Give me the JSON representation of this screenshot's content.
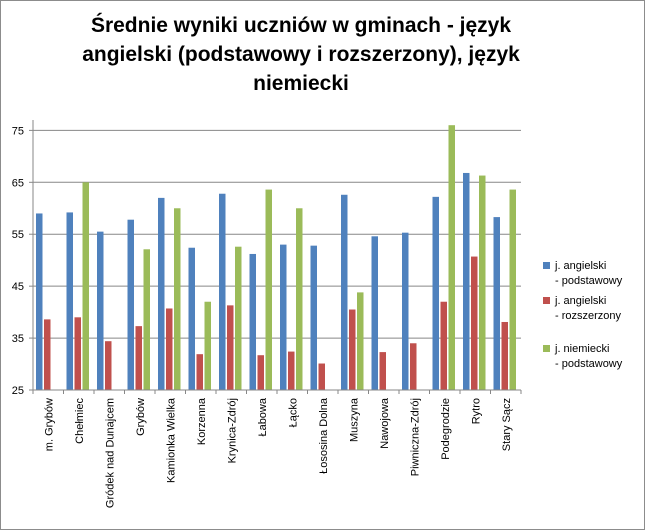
{
  "chart_data": {
    "type": "bar",
    "title": "Średnie wyniki uczniów w gminach - język angielski (podstawowy i rozszerzony), język niemiecki",
    "xlabel": "",
    "ylabel": "",
    "ylim": [
      25,
      77
    ],
    "yticks": [
      25,
      35,
      45,
      55,
      65,
      75
    ],
    "grid": true,
    "legend_position": "right",
    "categories": [
      "m. Grybów",
      "Chełmiec",
      "Gródek nad Dunajcem",
      "Grybów",
      "Kamionka Wielka",
      "Korzenna",
      "Krynica-Zdrój",
      "Łabowa",
      "Łącko",
      "Łososina Dolna",
      "Muszyna",
      "Nawojowa",
      "Piwniczna-Zdrój",
      "Podegrodzie",
      "Rytro",
      "Stary Sącz"
    ],
    "series": [
      {
        "name": "j. angielski - podstawowy",
        "legend_lines": [
          "j. angielski",
          "- podstawowy"
        ],
        "color": "#4f81bd",
        "values": [
          59,
          59.2,
          55.5,
          57.8,
          62,
          52.4,
          62.8,
          51.2,
          53,
          52.8,
          62.6,
          54.6,
          55.3,
          62.2,
          66.8,
          58.3
        ]
      },
      {
        "name": "j. angielski - rozszerzony",
        "legend_lines": [
          "j. angielski",
          "- rozszerzony"
        ],
        "color": "#c0504d",
        "values": [
          38.6,
          39,
          34.4,
          37.3,
          40.7,
          31.9,
          41.3,
          31.7,
          32.4,
          30.1,
          40.5,
          32.3,
          34,
          42,
          50.7,
          38.1
        ]
      },
      {
        "name": "j. niemiecki - podstawowy",
        "legend_lines": [
          "j. niemiecki",
          "- podstawowy"
        ],
        "color": "#9bbb59",
        "values": [
          null,
          65,
          null,
          52.1,
          60,
          42,
          52.6,
          63.6,
          60,
          null,
          43.8,
          null,
          null,
          76,
          66.3,
          63.6
        ]
      }
    ]
  }
}
